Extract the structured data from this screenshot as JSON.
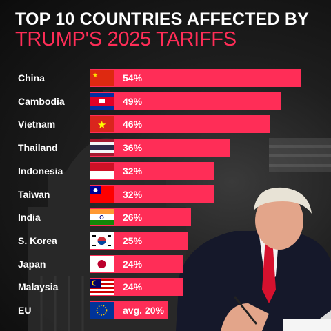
{
  "title": "TOP 10 COUNTRIES AFFECTED BY",
  "subtitle": "TRUMP'S 2025 TARIFFS",
  "colors": {
    "accent": "#ff2d57",
    "text": "#ffffff",
    "background": "#1a1a1a"
  },
  "chart_data": {
    "type": "bar",
    "orientation": "horizontal",
    "title": "TOP 10 COUNTRIES AFFECTED BY TRUMP'S 2025 TARIFFS",
    "categories": [
      "China",
      "Cambodia",
      "Vietnam",
      "Thailand",
      "Indonesia",
      "Taiwan",
      "India",
      "S. Korea",
      "Japan",
      "Malaysia",
      "EU"
    ],
    "values": [
      54,
      49,
      46,
      36,
      32,
      32,
      26,
      25,
      24,
      24,
      20
    ],
    "value_labels": [
      "54%",
      "49%",
      "46%",
      "36%",
      "32%",
      "32%",
      "26%",
      "25%",
      "24%",
      "24%",
      "avg. 20%"
    ],
    "flags": [
      "china-flag",
      "cambodia-flag",
      "vietnam-flag",
      "thailand-flag",
      "indonesia-flag",
      "taiwan-flag",
      "india-flag",
      "south-korea-flag",
      "japan-flag",
      "malaysia-flag",
      "eu-flag"
    ],
    "grid": false,
    "legend": "none"
  }
}
